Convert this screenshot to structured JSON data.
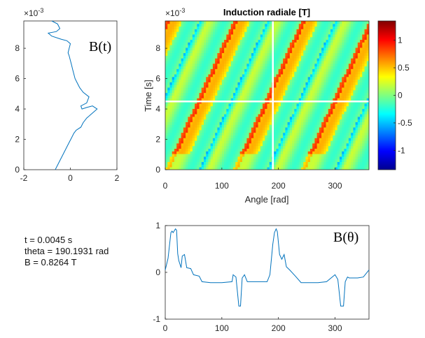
{
  "chart_data": [
    {
      "type": "line",
      "panel": "B_of_t",
      "annotation": "B(t)",
      "exponent_label": "×10^-3",
      "xlim": [
        -2,
        2
      ],
      "ylim": [
        0,
        0.0098
      ],
      "xticks": [
        -2,
        0,
        2
      ],
      "yticks": [
        0,
        2,
        4,
        6,
        8
      ],
      "line_color": "#0072bd",
      "series": [
        {
          "x": [
            -0.65,
            -0.55,
            -0.45,
            -0.35,
            -0.25,
            -0.15,
            -0.05,
            0.05,
            0.15,
            0.25,
            0.35,
            0.45,
            0.55,
            0.7,
            0.85,
            1.0,
            1.15,
            0.95,
            0.7,
            0.5,
            0.45,
            0.7,
            0.8,
            0.55,
            0.4,
            0.3,
            0.2,
            0.15,
            0.1,
            0.05,
            0.0,
            -0.05,
            -0.1,
            -0.05,
            0.0,
            -0.15,
            -0.4,
            -0.8,
            -0.95,
            -0.6,
            -0.45,
            -0.55,
            -0.8
          ],
          "y": [
            0.0,
            0.0003,
            0.0006,
            0.0009,
            0.0012,
            0.0015,
            0.0018,
            0.0021,
            0.0024,
            0.0026,
            0.0027,
            0.0028,
            0.0031,
            0.0034,
            0.0036,
            0.0038,
            0.004,
            0.0042,
            0.0041,
            0.004,
            0.0042,
            0.0044,
            0.0048,
            0.0051,
            0.0054,
            0.0057,
            0.006,
            0.0063,
            0.0066,
            0.0069,
            0.0072,
            0.0075,
            0.0077,
            0.008,
            0.0083,
            0.0085,
            0.0086,
            0.0088,
            0.009,
            0.0091,
            0.0093,
            0.0096,
            0.0098
          ]
        }
      ]
    },
    {
      "type": "heatmap",
      "panel": "map",
      "title": "Induction radiale [T]",
      "xlabel": "Angle [rad]",
      "ylabel": "Time [s]",
      "exponent_label": "×10^-3",
      "xlim": [
        0,
        360
      ],
      "ylim": [
        0,
        0.0098
      ],
      "xticks": [
        0,
        100,
        200,
        300
      ],
      "yticks": [
        0,
        2,
        4,
        6,
        8
      ],
      "colorbar": {
        "ticks": [
          1,
          0.5,
          0,
          -0.5,
          -1
        ],
        "clim": [
          -1.35,
          1.35
        ],
        "colormap": "jet"
      },
      "crosshair": {
        "angle": 190.1931,
        "time": 0.0045
      }
    },
    {
      "type": "line",
      "panel": "B_of_theta",
      "annotation": "B(θ)",
      "xlim": [
        0,
        360
      ],
      "ylim": [
        -1,
        1
      ],
      "xticks": [
        0,
        100,
        200,
        300
      ],
      "yticks": [
        1,
        0,
        -1
      ],
      "line_color": "#0072bd",
      "series": [
        {
          "x": [
            0,
            5,
            10,
            12,
            14,
            18,
            20,
            22,
            24,
            28,
            30,
            34,
            38,
            45,
            50,
            60,
            65,
            80,
            100,
            118,
            120,
            125,
            130,
            133,
            136,
            140,
            145,
            155,
            170,
            180,
            185,
            190,
            193,
            196,
            198,
            202,
            206,
            210,
            214,
            220,
            230,
            240,
            255,
            270,
            285,
            300,
            305,
            310,
            315,
            318,
            322,
            325,
            330,
            340,
            350,
            360
          ],
          "y": [
            0.05,
            0.3,
            0.85,
            0.88,
            0.85,
            0.93,
            0.9,
            0.4,
            0.25,
            0.1,
            0.35,
            0.38,
            0.1,
            0.08,
            -0.05,
            -0.08,
            -0.2,
            -0.22,
            -0.22,
            -0.2,
            -0.05,
            -0.1,
            -0.72,
            -0.72,
            -0.12,
            -0.05,
            -0.2,
            -0.2,
            -0.2,
            -0.2,
            -0.05,
            0.6,
            0.85,
            0.93,
            0.87,
            0.38,
            0.28,
            0.38,
            0.12,
            0.05,
            -0.08,
            -0.22,
            -0.22,
            -0.22,
            -0.2,
            -0.05,
            -0.15,
            -0.72,
            -0.72,
            -0.2,
            -0.1,
            -0.12,
            -0.12,
            -0.12,
            -0.1,
            0.05
          ]
        }
      ]
    }
  ],
  "info": {
    "t_line": "t = 0.0045 s",
    "theta_line": "theta = 190.1931 rad",
    "b_line": "B = 0.8264 T"
  }
}
